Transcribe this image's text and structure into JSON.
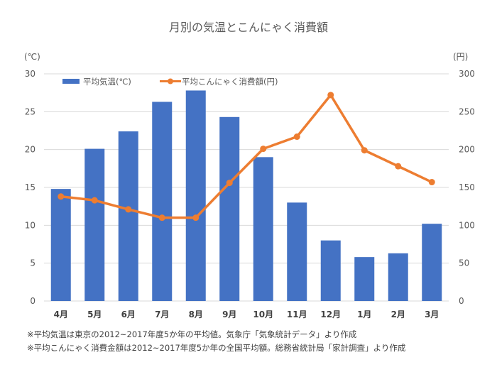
{
  "chart_data": {
    "type": "bar+line",
    "title": "月別の気温とこんにゃく消費額",
    "categories": [
      "4月",
      "5月",
      "6月",
      "7月",
      "8月",
      "9月",
      "10月",
      "11月",
      "12月",
      "1月",
      "2月",
      "3月"
    ],
    "left_axis": {
      "label": "(℃)",
      "range": [
        0,
        30
      ],
      "ticks": [
        0,
        5,
        10,
        15,
        20,
        25,
        30
      ]
    },
    "right_axis": {
      "label": "(円)",
      "range": [
        0,
        300
      ],
      "ticks": [
        0,
        50,
        100,
        150,
        200,
        250,
        300
      ]
    },
    "grid": true,
    "legend_position": "top-left",
    "series": [
      {
        "name": "平均気温(℃)",
        "type": "bar",
        "axis": "left",
        "color": "#4472C4",
        "values": [
          14.8,
          20.1,
          22.4,
          26.3,
          27.8,
          24.3,
          19.0,
          13.0,
          8.0,
          5.8,
          6.3,
          10.2
        ]
      },
      {
        "name": "平均こんにゃく消費額(円)",
        "type": "line",
        "axis": "right",
        "color": "#ED7D31",
        "values": [
          138,
          133,
          121,
          110,
          110,
          156,
          201,
          217,
          272,
          199,
          178,
          157
        ]
      }
    ]
  },
  "notes": [
    "※平均気温は東京の2012~2017年度5か年の平均値。気象庁「気象統計データ」より作成",
    "※平均こんにゃく消費金額は2012~2017年度5か年の全国平均額。総務省統計局「家計調査」より作成"
  ]
}
